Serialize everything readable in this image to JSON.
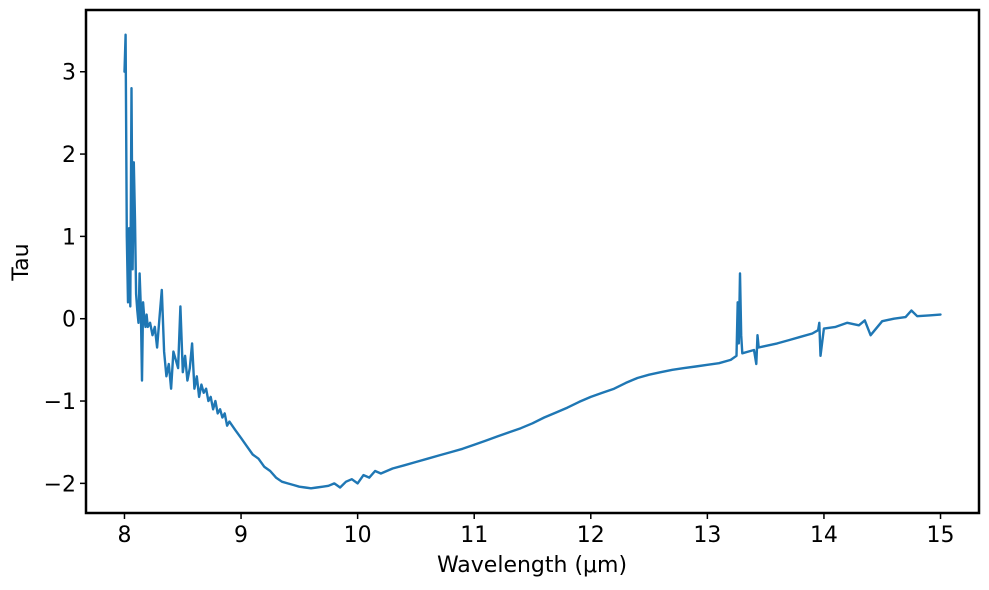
{
  "chart_data": {
    "type": "line",
    "title": "",
    "xlabel": "Wavelength (μm)",
    "ylabel": "Tau",
    "xlim": [
      7.67,
      15.33
    ],
    "ylim": [
      -2.36,
      3.75
    ],
    "xticks": [
      8,
      9,
      10,
      11,
      12,
      13,
      14,
      15
    ],
    "xtick_labels": [
      "8",
      "9",
      "10",
      "11",
      "12",
      "13",
      "14",
      "15"
    ],
    "yticks": [
      -2,
      -1,
      0,
      1,
      2,
      3
    ],
    "ytick_labels": [
      "−2",
      "−1",
      "0",
      "1",
      "2",
      "3"
    ],
    "grid": false,
    "legend": "none",
    "series": [
      {
        "color": "#1f77b4",
        "x": [
          8.0,
          8.01,
          8.02,
          8.03,
          8.04,
          8.05,
          8.06,
          8.07,
          8.08,
          8.09,
          8.1,
          8.11,
          8.12,
          8.13,
          8.14,
          8.15,
          8.16,
          8.17,
          8.18,
          8.19,
          8.2,
          8.22,
          8.24,
          8.26,
          8.28,
          8.3,
          8.32,
          8.34,
          8.36,
          8.38,
          8.4,
          8.42,
          8.44,
          8.46,
          8.48,
          8.5,
          8.52,
          8.54,
          8.56,
          8.58,
          8.6,
          8.62,
          8.64,
          8.66,
          8.68,
          8.7,
          8.72,
          8.74,
          8.76,
          8.78,
          8.8,
          8.82,
          8.84,
          8.86,
          8.88,
          8.9,
          8.95,
          9.0,
          9.05,
          9.1,
          9.15,
          9.2,
          9.25,
          9.3,
          9.35,
          9.4,
          9.45,
          9.5,
          9.55,
          9.6,
          9.65,
          9.7,
          9.75,
          9.8,
          9.85,
          9.9,
          9.95,
          10.0,
          10.05,
          10.1,
          10.15,
          10.2,
          10.3,
          10.4,
          10.5,
          10.6,
          10.7,
          10.8,
          10.9,
          11.0,
          11.1,
          11.2,
          11.3,
          11.4,
          11.5,
          11.6,
          11.7,
          11.8,
          11.9,
          12.0,
          12.1,
          12.2,
          12.3,
          12.4,
          12.5,
          12.6,
          12.7,
          12.8,
          12.9,
          13.0,
          13.1,
          13.2,
          13.25,
          13.26,
          13.27,
          13.28,
          13.29,
          13.3,
          13.35,
          13.4,
          13.42,
          13.43,
          13.44,
          13.5,
          13.6,
          13.7,
          13.8,
          13.9,
          13.95,
          13.96,
          13.97,
          14.0,
          14.1,
          14.2,
          14.3,
          14.35,
          14.4,
          14.5,
          14.6,
          14.7,
          14.75,
          14.8,
          14.9,
          15.0
        ],
        "y": [
          3.0,
          3.45,
          1.0,
          0.2,
          1.1,
          0.15,
          2.8,
          0.6,
          1.9,
          1.2,
          0.3,
          0.1,
          -0.05,
          0.55,
          0.15,
          -0.75,
          0.2,
          0.0,
          -0.1,
          0.05,
          -0.1,
          -0.05,
          -0.2,
          -0.1,
          -0.35,
          0.0,
          0.35,
          -0.4,
          -0.7,
          -0.55,
          -0.85,
          -0.4,
          -0.5,
          -0.6,
          0.15,
          -0.65,
          -0.45,
          -0.75,
          -0.6,
          -0.3,
          -0.85,
          -0.7,
          -0.95,
          -0.8,
          -0.9,
          -0.85,
          -1.0,
          -0.95,
          -1.1,
          -1.0,
          -1.15,
          -1.1,
          -1.2,
          -1.15,
          -1.3,
          -1.25,
          -1.35,
          -1.45,
          -1.55,
          -1.65,
          -1.7,
          -1.8,
          -1.85,
          -1.93,
          -1.98,
          -2.0,
          -2.02,
          -2.04,
          -2.05,
          -2.06,
          -2.05,
          -2.04,
          -2.03,
          -2.0,
          -2.05,
          -1.98,
          -1.95,
          -2.0,
          -1.9,
          -1.93,
          -1.85,
          -1.88,
          -1.82,
          -1.78,
          -1.74,
          -1.7,
          -1.66,
          -1.62,
          -1.58,
          -1.53,
          -1.48,
          -1.43,
          -1.38,
          -1.33,
          -1.27,
          -1.2,
          -1.14,
          -1.08,
          -1.01,
          -0.95,
          -0.9,
          -0.85,
          -0.78,
          -0.72,
          -0.68,
          -0.65,
          -0.62,
          -0.6,
          -0.58,
          -0.56,
          -0.54,
          -0.5,
          -0.45,
          0.2,
          -0.3,
          0.55,
          -0.2,
          -0.42,
          -0.4,
          -0.38,
          -0.55,
          -0.2,
          -0.35,
          -0.33,
          -0.3,
          -0.26,
          -0.22,
          -0.18,
          -0.14,
          -0.05,
          -0.45,
          -0.12,
          -0.1,
          -0.05,
          -0.08,
          -0.02,
          -0.2,
          -0.03,
          0.0,
          0.02,
          0.1,
          0.03,
          0.04,
          0.05
        ]
      }
    ]
  }
}
